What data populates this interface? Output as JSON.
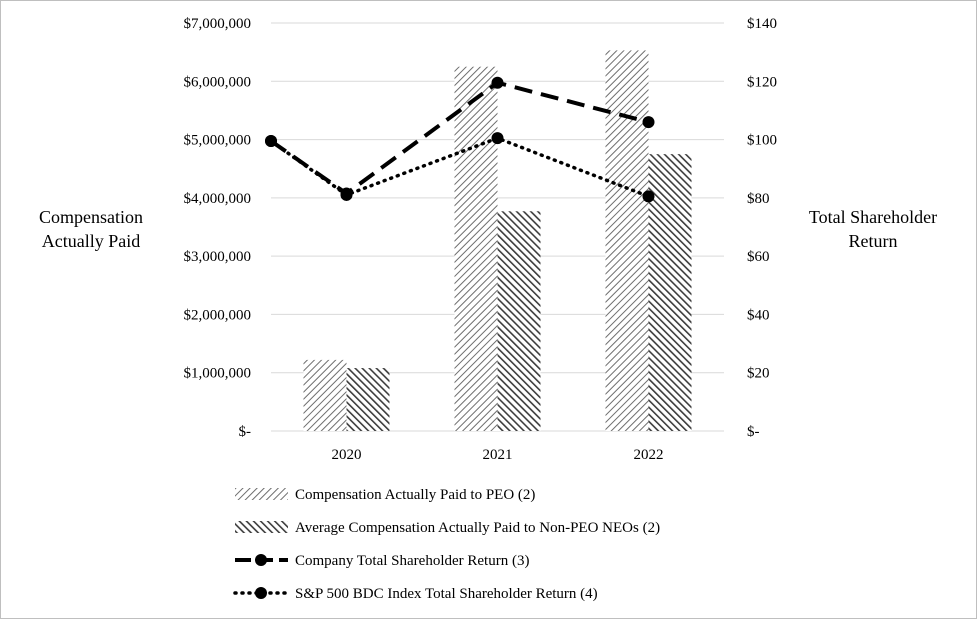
{
  "chart_data": {
    "type": "bar",
    "categories": [
      "2020",
      "2021",
      "2022"
    ],
    "y_left": {
      "label_lines": [
        "Compensation",
        "Actually Paid"
      ],
      "ticks": [
        "$-",
        "$1,000,000",
        "$2,000,000",
        "$3,000,000",
        "$4,000,000",
        "$5,000,000",
        "$6,000,000",
        "$7,000,000"
      ],
      "range": [
        0,
        7000000
      ]
    },
    "y_right": {
      "label_lines": [
        "Total Shareholder",
        "Return"
      ],
      "ticks": [
        "$-",
        "$20",
        "$40",
        "$60",
        "$80",
        "$100",
        "$120",
        "$140"
      ],
      "range": [
        0,
        140
      ]
    },
    "bar_series": [
      {
        "name": "Compensation Actually Paid to PEO (2)",
        "values": [
          1220000,
          6250000,
          6530000
        ],
        "pattern": "hatch-light"
      },
      {
        "name": "Average Compensation Actually Paid to Non-PEO NEOs (2)",
        "values": [
          1080000,
          3770000,
          4750000
        ],
        "pattern": "hatch-dark"
      }
    ],
    "line_series": [
      {
        "name": "Company Total Shareholder Return (3)",
        "values": [
          99.5,
          81.5,
          119.5,
          106
        ],
        "style": "dashed"
      },
      {
        "name": "S&P 500 BDC Index Total Shareholder Return (4)",
        "values": [
          99.5,
          81,
          100.5,
          80.5
        ],
        "style": "dotted"
      }
    ],
    "line_x_positions": [
      "2019 (start)",
      "2020",
      "2021",
      "2022"
    ],
    "gridlines": true,
    "legend_position": "bottom"
  }
}
